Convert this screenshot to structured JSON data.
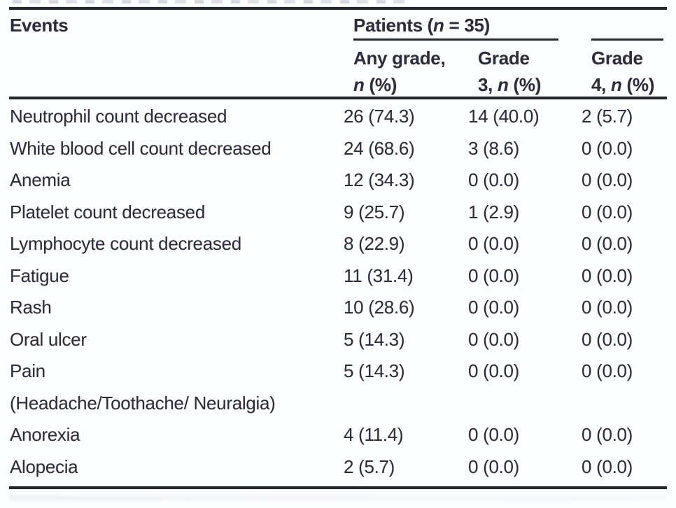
{
  "table": {
    "header": {
      "events_label": "Events",
      "patients_group": {
        "prefix": "Patients (",
        "n": "n",
        "suffix": " = 35)"
      },
      "subcolumns": [
        {
          "line1": "Any grade,",
          "line2_prefix": "",
          "n": "n",
          "line2_suffix": " (%)"
        },
        {
          "line1": "Grade",
          "line2_prefix": "3, ",
          "n": "n",
          "line2_suffix": " (%)"
        },
        {
          "line1": "Grade",
          "line2_prefix": "4, ",
          "n": "n",
          "line2_suffix": " (%)"
        }
      ]
    },
    "rows": [
      {
        "event": "Neutrophil count decreased",
        "any_grade": "26 (74.3)",
        "grade3": "14 (40.0)",
        "grade4": "2 (5.7)"
      },
      {
        "event": "White blood cell count decreased",
        "any_grade": "24 (68.6)",
        "grade3": "3 (8.6)",
        "grade4": "0 (0.0)"
      },
      {
        "event": "Anemia",
        "any_grade": "12 (34.3)",
        "grade3": "0 (0.0)",
        "grade4": "0 (0.0)"
      },
      {
        "event": "Platelet count decreased",
        "any_grade": "9 (25.7)",
        "grade3": "1 (2.9)",
        "grade4": "0 (0.0)"
      },
      {
        "event": "Lymphocyte count decreased",
        "any_grade": "8 (22.9)",
        "grade3": "0 (0.0)",
        "grade4": "0 (0.0)"
      },
      {
        "event": "Fatigue",
        "any_grade": "11 (31.4)",
        "grade3": "0 (0.0)",
        "grade4": "0 (0.0)"
      },
      {
        "event": "Rash",
        "any_grade": "10 (28.6)",
        "grade3": "0 (0.0)",
        "grade4": "0 (0.0)"
      },
      {
        "event": "Oral ulcer",
        "any_grade": "5 (14.3)",
        "grade3": "0 (0.0)",
        "grade4": "0 (0.0)"
      },
      {
        "event": "Pain",
        "event_line2": "(Headache/Toothache/ Neuralgia)",
        "any_grade": "5 (14.3)",
        "grade3": "0 (0.0)",
        "grade4": "0 (0.0)"
      },
      {
        "event": "Anorexia",
        "any_grade": "4 (11.4)",
        "grade3": "0 (0.0)",
        "grade4": "0 (0.0)"
      },
      {
        "event": "Alopecia",
        "any_grade": "2 (5.7)",
        "grade3": "0 (0.0)",
        "grade4": "0 (0.0)"
      }
    ],
    "colors": {
      "text": "#2e2e3a",
      "rule": "#26262f",
      "background": "#fcfdfe"
    }
  }
}
